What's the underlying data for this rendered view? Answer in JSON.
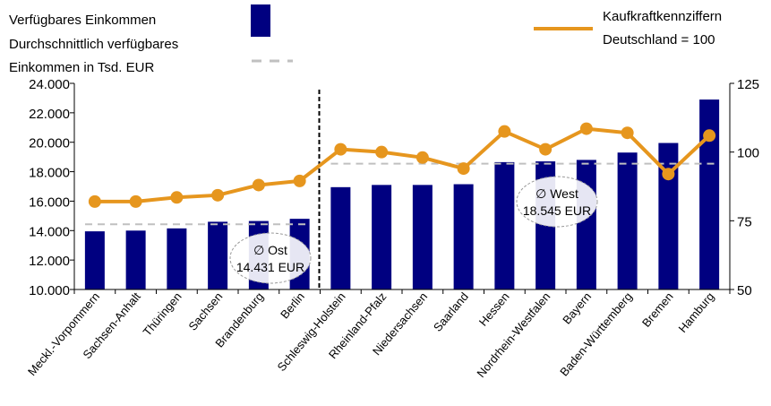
{
  "chart_data": {
    "type": "bar",
    "categories": [
      "Meckl.-Vorpommern",
      "Sachsen-Anhalt",
      "Thüringen",
      "Sachsen",
      "Brandenburg",
      "Berlin",
      "Schleswig-Holstein",
      "Rheinland-Pfalz",
      "Niedersachsen",
      "Saarland",
      "Hessen",
      "Nordrhein-Westfalen",
      "Bayern",
      "Baden-Württemberg",
      "Bremen",
      "Hamburg"
    ],
    "series": [
      {
        "name": "Verfügbares Einkommen",
        "type": "bar",
        "axis": "left",
        "values": [
          13950,
          14000,
          14150,
          14600,
          14650,
          14800,
          16950,
          17100,
          17100,
          17150,
          18650,
          18700,
          18800,
          19300,
          19950,
          22900
        ]
      },
      {
        "name": "Kaufkraftkennziffern Deutschland = 100",
        "type": "line",
        "axis": "right",
        "values": [
          82,
          82,
          83.5,
          84.3,
          88,
          89.5,
          101,
          100,
          98,
          94,
          107.5,
          101,
          108.5,
          107,
          92,
          106
        ]
      }
    ],
    "averages": [
      {
        "label": "Durchschnittlich verfügbares Einkommen in Tsd. EUR",
        "group": "Ost",
        "symbol": "∅ Ost",
        "value_text": "14.431 EUR",
        "value": 14431,
        "from_index": 0,
        "to_index": 5
      },
      {
        "label": "Durchschnittlich verfügbares Einkommen in Tsd. EUR",
        "group": "West",
        "symbol": "∅ West",
        "value_text": "18.545 EUR",
        "value": 18545,
        "from_index": 6,
        "to_index": 15
      }
    ],
    "y_left": {
      "min": 10000,
      "max": 24000,
      "step": 2000,
      "ticks": [
        "10.000",
        "12.000",
        "14.000",
        "16.000",
        "18.000",
        "20.000",
        "22.000",
        "24.000"
      ]
    },
    "y_right": {
      "min": 50,
      "max": 125,
      "step": 25,
      "ticks": [
        "50",
        "75",
        "100",
        "125"
      ]
    },
    "divider_after_index": 5,
    "legend": {
      "bar_label": "Verfügbares Einkommen",
      "avg_label_line1": "Durchschnittlich verfügbares",
      "avg_label_line2": "Einkommen in Tsd. EUR",
      "line_label_line1": "Kaufkraftkennziffern",
      "line_label_line2": "Deutschland = 100",
      "placement": "top"
    },
    "colors": {
      "bar": "#000080",
      "line": "#E6961E",
      "avg": "#C0C0C0",
      "divider": "#000000"
    }
  }
}
